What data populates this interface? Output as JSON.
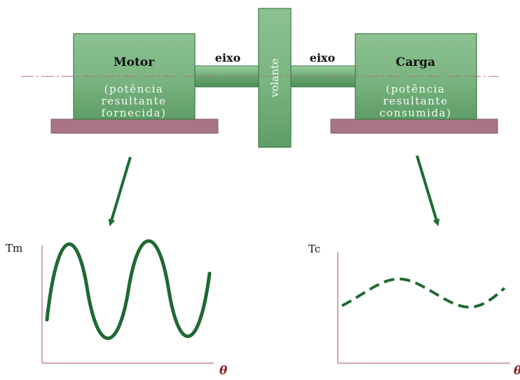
{
  "motor": {
    "title": "Motor",
    "sub_lines": [
      "(potência",
      "resultante",
      "fornecida)"
    ]
  },
  "load": {
    "title": "Carga",
    "sub_lines": [
      "(potência",
      "resultante",
      "consumida)"
    ]
  },
  "shaft": {
    "left_label": "eixo",
    "right_label": "eixo"
  },
  "flywheel": {
    "label": "volante"
  },
  "motor_graph": {
    "ylabel": "Tm",
    "xlabel": "θ"
  },
  "load_graph": {
    "ylabel": "Tc",
    "xlabel": "θ"
  },
  "colors": {
    "block_fill": "#7cb682",
    "block_stroke": "#3c7a45",
    "base": "#a87585",
    "arrow": "#1d6b33",
    "curve": "#1e6a32",
    "axis": "#c08a9a"
  }
}
